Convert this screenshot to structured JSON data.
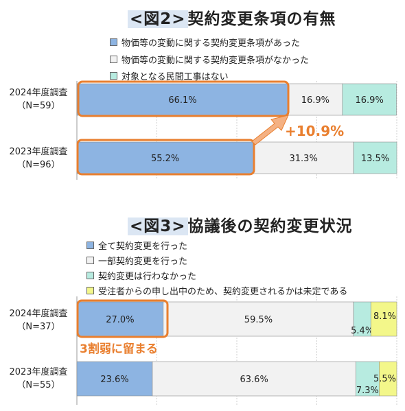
{
  "colors": {
    "blue": "#8db4e2",
    "white": "#f2f2f2",
    "teal": "#b7ebe0",
    "yellow": "#f3f78a",
    "orange": "#e97f2f",
    "orange_text": "#e97f2f"
  },
  "chart_data": [
    {
      "type": "bar",
      "orientation": "horizontal-stacked-100",
      "title_tag": "<図2>",
      "title": "契約変更条項の有無",
      "categories": [
        {
          "label": "2024年度調査",
          "n": "（N=59）"
        },
        {
          "label": "2023年度調査",
          "n": "（N=96）"
        }
      ],
      "series": [
        {
          "name": "物価等の変動に関する契約変更条項があった",
          "color": "#8db4e2",
          "values": [
            66.1,
            55.2
          ],
          "labels": [
            "66.1%",
            "55.2%"
          ]
        },
        {
          "name": "物価等の変動に関する契約変更条項がなかった",
          "color": "#f2f2f2",
          "values": [
            16.9,
            31.3
          ],
          "labels": [
            "16.9%",
            "31.3%"
          ]
        },
        {
          "name": "対象となる民間工事はない",
          "color": "#b7ebe0",
          "values": [
            16.9,
            13.5
          ],
          "labels": [
            "16.9%",
            "13.5%"
          ]
        }
      ],
      "annotation": "+10.9%",
      "legend_position": "top",
      "grid": true
    },
    {
      "type": "bar",
      "orientation": "horizontal-stacked-100",
      "title_tag": "<図3>",
      "title": "協議後の契約変更状況",
      "categories": [
        {
          "label": "2024年度調査",
          "n": "（N=37）"
        },
        {
          "label": "2023年度調査",
          "n": "（N=55）"
        }
      ],
      "series": [
        {
          "name": "全て契約変更を行った",
          "color": "#8db4e2",
          "values": [
            27.0,
            23.6
          ],
          "labels": [
            "27.0%",
            "23.6%"
          ]
        },
        {
          "name": "一部契約変更を行った",
          "color": "#f2f2f2",
          "values": [
            59.5,
            63.6
          ],
          "labels": [
            "59.5%",
            "63.6%"
          ]
        },
        {
          "name": "契約変更は行わなかった",
          "color": "#b7ebe0",
          "values": [
            5.4,
            7.3
          ],
          "labels": [
            "5.4%",
            "7.3%"
          ]
        },
        {
          "name": "受注者からの申し出中のため、契約変更されるかは未定である",
          "color": "#f3f78a",
          "values": [
            8.1,
            5.5
          ],
          "labels": [
            "8.1%",
            "5.5%"
          ]
        }
      ],
      "annotation": "3割弱に留まる",
      "legend_position": "top",
      "grid": true
    }
  ]
}
